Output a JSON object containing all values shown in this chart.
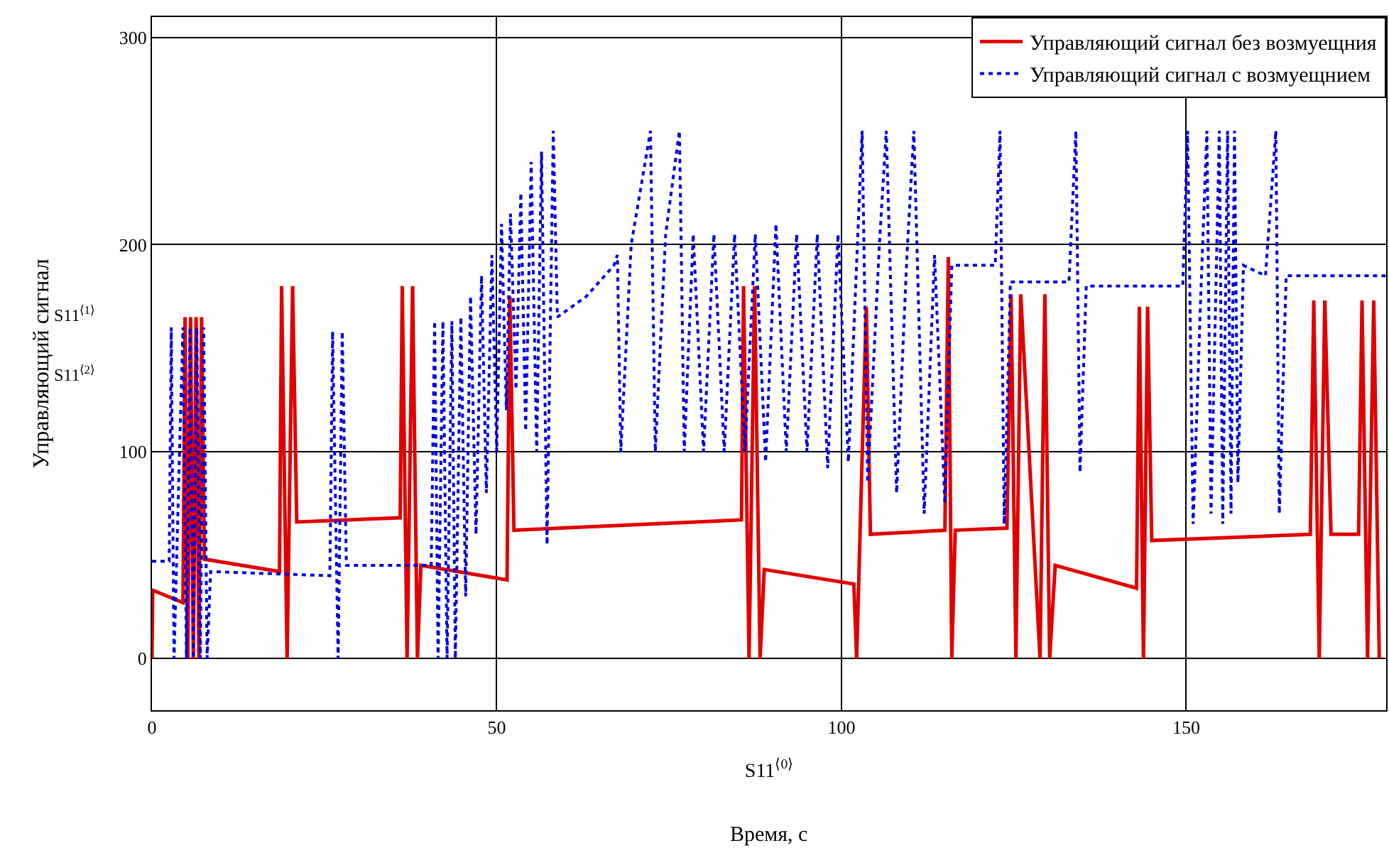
{
  "chart_data": {
    "type": "line",
    "xlabel": "S11$^{⟨0⟩}$",
    "ylabel": "Управляющий сигнал",
    "annotations": [
      "S11$^{⟨1⟩}$",
      "S11$^{⟨2⟩}$",
      "Время, с"
    ],
    "xlim": [
      0,
      179
    ],
    "ylim": [
      -25,
      310
    ],
    "xticks": [
      0,
      50,
      100,
      150
    ],
    "yticks": [
      0,
      100,
      200,
      300
    ],
    "grid": true,
    "legend": "top right",
    "series": [
      {
        "name": "Управляющий сигнал без возмуещния",
        "color": "#e00000",
        "line_style": "solid",
        "x": [
          0,
          0.1,
          4.5,
          4.8,
          5.2,
          5.6,
          6.0,
          6.4,
          6.8,
          7.2,
          7.6,
          18.5,
          18.8,
          19.6,
          20.4,
          21.0,
          36.0,
          36.3,
          37.0,
          37.8,
          38.5,
          39.0,
          51.5,
          51.9,
          52.5,
          85.5,
          85.8,
          86.6,
          87.4,
          88.2,
          88.8,
          101.8,
          102.2,
          103.6,
          104.2,
          115.0,
          115.5,
          116.0,
          116.5,
          124.0,
          124.6,
          125.3,
          126.0,
          128.8,
          129.5,
          130.2,
          131.0,
          142.8,
          143.2,
          143.8,
          144.4,
          145.0,
          168.0,
          168.5,
          169.3,
          170.1,
          171.0,
          175.0,
          175.5,
          176.3,
          177.2,
          178.0
        ],
        "values": [
          0,
          33,
          27,
          165,
          0,
          165,
          0,
          165,
          0,
          165,
          48,
          42,
          180,
          0,
          180,
          66,
          68,
          180,
          0,
          180,
          0,
          45,
          38,
          175,
          62,
          67,
          180,
          0,
          180,
          0,
          43,
          36,
          0,
          170,
          60,
          62,
          194,
          0,
          62,
          63,
          176,
          0,
          176,
          0,
          176,
          0,
          45,
          34,
          170,
          0,
          170,
          57,
          60,
          173,
          0,
          173,
          60,
          60,
          173,
          0,
          173,
          0
        ]
      },
      {
        "name": "Управляющий сигнал с возмуещнием",
        "color": "#0000e0",
        "line_style": "dotted",
        "x": [
          0,
          2.5,
          2.8,
          3.2,
          4.0,
          4.5,
          5.0,
          5.5,
          6.0,
          6.5,
          7.0,
          7.5,
          8.0,
          8.5,
          25.8,
          26.2,
          27.0,
          27.6,
          28.2,
          40.5,
          41.0,
          41.5,
          42.2,
          42.8,
          43.5,
          44.0,
          44.8,
          45.5,
          46.2,
          47.0,
          47.8,
          48.5,
          49.3,
          50.0,
          50.7,
          51.4,
          52.0,
          52.8,
          53.5,
          54.2,
          55.0,
          55.8,
          56.5,
          57.3,
          58.2,
          58.8,
          63,
          67,
          67.5,
          68,
          69.5,
          72.3,
          73,
          74.5,
          76.5,
          77.2,
          78.5,
          80,
          81.5,
          83,
          84.5,
          86,
          87.5,
          89,
          90.5,
          92,
          93.5,
          95,
          96.5,
          98,
          99.5,
          101,
          103,
          103.8,
          105.5,
          106.5,
          108,
          109.5,
          110.5,
          112,
          113.5,
          115,
          116,
          122.3,
          123,
          123.6,
          124.5,
          133,
          134,
          134.6,
          135.5,
          149.5,
          150.2,
          151,
          152,
          153,
          153.6,
          154.8,
          155.3,
          156,
          156.5,
          157,
          157.5,
          158.3,
          161.5,
          163,
          163.5,
          164.5,
          179
        ],
        "values": [
          47,
          47,
          160,
          0,
          100,
          160,
          0,
          160,
          0,
          160,
          0,
          160,
          0,
          42,
          40,
          158,
          0,
          158,
          45,
          45,
          163,
          0,
          163,
          0,
          163,
          0,
          165,
          30,
          175,
          60,
          185,
          80,
          195,
          100,
          210,
          120,
          215,
          130,
          225,
          110,
          240,
          100,
          245,
          55,
          255,
          165,
          175,
          190,
          195,
          100,
          200,
          255,
          100,
          205,
          255,
          100,
          205,
          100,
          205,
          100,
          205,
          100,
          205,
          95,
          210,
          100,
          205,
          100,
          205,
          92,
          205,
          95,
          255,
          85,
          200,
          255,
          80,
          195,
          255,
          70,
          195,
          75,
          190,
          190,
          255,
          65,
          182,
          182,
          255,
          90,
          180,
          180,
          255,
          65,
          165,
          255,
          70,
          255,
          65,
          255,
          70,
          255,
          85,
          190,
          185,
          255,
          70,
          185,
          185
        ]
      }
    ]
  }
}
